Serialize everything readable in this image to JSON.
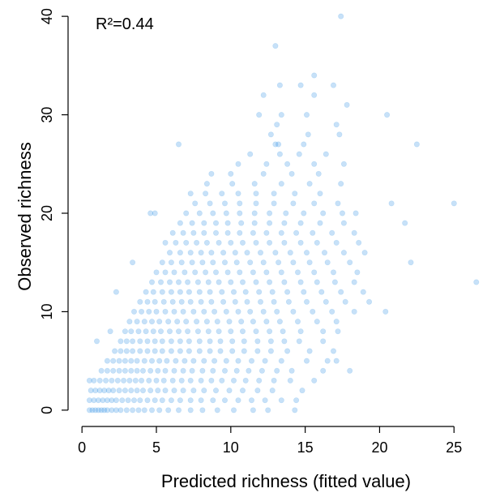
{
  "chart_data": {
    "type": "scatter",
    "xlabel": "Predicted richness (fitted value)",
    "ylabel": "Observed richness",
    "annotation": "R²=0.44",
    "xlim": [
      -0.5,
      27
    ],
    "ylim": [
      -1,
      41
    ],
    "x_ticks": [
      0,
      5,
      10,
      15,
      20,
      25
    ],
    "y_ticks": [
      0,
      10,
      20,
      30,
      40
    ],
    "grid": false,
    "point_color": "#1e88e5",
    "points": [
      [
        0.5,
        0
      ],
      [
        0.7,
        0
      ],
      [
        0.9,
        0
      ],
      [
        1.1,
        0
      ],
      [
        1.3,
        0
      ],
      [
        1.5,
        0
      ],
      [
        1.7,
        0
      ],
      [
        2.0,
        0
      ],
      [
        2.3,
        0
      ],
      [
        2.6,
        0
      ],
      [
        3.0,
        0
      ],
      [
        3.4,
        0
      ],
      [
        3.8,
        0
      ],
      [
        4.2,
        0
      ],
      [
        4.7,
        0
      ],
      [
        5.2,
        0
      ],
      [
        5.8,
        0
      ],
      [
        6.5,
        0
      ],
      [
        7.3,
        0
      ],
      [
        8.1,
        0
      ],
      [
        9.1,
        0
      ],
      [
        10.2,
        0
      ],
      [
        11.5,
        0
      ],
      [
        12.5,
        0
      ],
      [
        14.3,
        0
      ],
      [
        0.5,
        1
      ],
      [
        0.8,
        1
      ],
      [
        1.1,
        1
      ],
      [
        1.4,
        1
      ],
      [
        1.7,
        1
      ],
      [
        2.0,
        1
      ],
      [
        2.3,
        1
      ],
      [
        2.7,
        1
      ],
      [
        3.1,
        1
      ],
      [
        3.5,
        1
      ],
      [
        3.9,
        1
      ],
      [
        4.4,
        1
      ],
      [
        4.9,
        1
      ],
      [
        5.4,
        1
      ],
      [
        6.0,
        1
      ],
      [
        6.6,
        1
      ],
      [
        7.3,
        1
      ],
      [
        8.0,
        1
      ],
      [
        8.8,
        1
      ],
      [
        9.6,
        1
      ],
      [
        10.5,
        1
      ],
      [
        11.4,
        1
      ],
      [
        12.3,
        1
      ],
      [
        13.4,
        1
      ],
      [
        14.4,
        1
      ],
      [
        0.6,
        2
      ],
      [
        0.9,
        2
      ],
      [
        1.2,
        2
      ],
      [
        1.5,
        2
      ],
      [
        1.8,
        2
      ],
      [
        2.1,
        2
      ],
      [
        2.5,
        2
      ],
      [
        2.9,
        2
      ],
      [
        3.3,
        2
      ],
      [
        3.7,
        2
      ],
      [
        4.1,
        2
      ],
      [
        4.6,
        2
      ],
      [
        5.1,
        2
      ],
      [
        5.6,
        2
      ],
      [
        6.2,
        2
      ],
      [
        6.8,
        2
      ],
      [
        7.5,
        2
      ],
      [
        8.2,
        2
      ],
      [
        9.0,
        2
      ],
      [
        9.9,
        2
      ],
      [
        10.8,
        2
      ],
      [
        11.8,
        2
      ],
      [
        12.8,
        2
      ],
      [
        14.8,
        2
      ],
      [
        0.5,
        3
      ],
      [
        0.8,
        3
      ],
      [
        1.2,
        3
      ],
      [
        1.6,
        3
      ],
      [
        2.0,
        3
      ],
      [
        2.4,
        3
      ],
      [
        2.8,
        3
      ],
      [
        3.2,
        3
      ],
      [
        3.6,
        3
      ],
      [
        4.0,
        3
      ],
      [
        4.5,
        3
      ],
      [
        5.0,
        3
      ],
      [
        5.5,
        3
      ],
      [
        6.1,
        3
      ],
      [
        6.7,
        3
      ],
      [
        7.3,
        3
      ],
      [
        8.0,
        3
      ],
      [
        8.7,
        3
      ],
      [
        9.4,
        3
      ],
      [
        10.2,
        3
      ],
      [
        11.0,
        3
      ],
      [
        11.9,
        3
      ],
      [
        12.9,
        3
      ],
      [
        14.0,
        3
      ],
      [
        15.6,
        3
      ],
      [
        1.3,
        4
      ],
      [
        1.7,
        4
      ],
      [
        2.1,
        4
      ],
      [
        2.5,
        4
      ],
      [
        2.9,
        4
      ],
      [
        3.3,
        4
      ],
      [
        3.7,
        4
      ],
      [
        4.1,
        4
      ],
      [
        4.6,
        4
      ],
      [
        5.1,
        4
      ],
      [
        5.6,
        4
      ],
      [
        6.2,
        4
      ],
      [
        6.8,
        4
      ],
      [
        7.4,
        4
      ],
      [
        8.1,
        4
      ],
      [
        8.8,
        4
      ],
      [
        9.6,
        4
      ],
      [
        10.4,
        4
      ],
      [
        11.2,
        4
      ],
      [
        12.1,
        4
      ],
      [
        13.1,
        4
      ],
      [
        14.1,
        4
      ],
      [
        16.2,
        4
      ],
      [
        18.0,
        4
      ],
      [
        1.7,
        5
      ],
      [
        2.1,
        5
      ],
      [
        2.5,
        5
      ],
      [
        2.9,
        5
      ],
      [
        3.3,
        5
      ],
      [
        3.7,
        5
      ],
      [
        4.2,
        5
      ],
      [
        4.7,
        5
      ],
      [
        5.2,
        5
      ],
      [
        5.7,
        5
      ],
      [
        6.3,
        5
      ],
      [
        6.9,
        5
      ],
      [
        7.5,
        5
      ],
      [
        8.2,
        5
      ],
      [
        8.9,
        5
      ],
      [
        9.7,
        5
      ],
      [
        10.5,
        5
      ],
      [
        11.4,
        5
      ],
      [
        12.3,
        5
      ],
      [
        13.4,
        5
      ],
      [
        15.1,
        5
      ],
      [
        16.5,
        5
      ],
      [
        17.1,
        5
      ],
      [
        2.2,
        6
      ],
      [
        2.6,
        6
      ],
      [
        3.0,
        6
      ],
      [
        3.4,
        6
      ],
      [
        3.9,
        6
      ],
      [
        4.4,
        6
      ],
      [
        4.9,
        6
      ],
      [
        5.4,
        6
      ],
      [
        6.0,
        6
      ],
      [
        6.6,
        6
      ],
      [
        7.2,
        6
      ],
      [
        7.9,
        6
      ],
      [
        8.6,
        6
      ],
      [
        9.3,
        6
      ],
      [
        10.1,
        6
      ],
      [
        10.9,
        6
      ],
      [
        11.8,
        6
      ],
      [
        12.7,
        6
      ],
      [
        13.8,
        6
      ],
      [
        15.3,
        6
      ],
      [
        16.9,
        6
      ],
      [
        2.6,
        7
      ],
      [
        3.0,
        7
      ],
      [
        3.4,
        7
      ],
      [
        3.9,
        7
      ],
      [
        4.4,
        7
      ],
      [
        4.9,
        7
      ],
      [
        5.4,
        7
      ],
      [
        6.0,
        7
      ],
      [
        6.6,
        7
      ],
      [
        7.2,
        7
      ],
      [
        7.9,
        7
      ],
      [
        8.6,
        7
      ],
      [
        9.3,
        7
      ],
      [
        10.1,
        7
      ],
      [
        10.9,
        7
      ],
      [
        11.8,
        7
      ],
      [
        12.7,
        7
      ],
      [
        13.6,
        7
      ],
      [
        14.6,
        7
      ],
      [
        16.2,
        7
      ],
      [
        1.0,
        7
      ],
      [
        2.9,
        8
      ],
      [
        3.3,
        8
      ],
      [
        3.8,
        8
      ],
      [
        4.3,
        8
      ],
      [
        4.8,
        8
      ],
      [
        5.3,
        8
      ],
      [
        5.9,
        8
      ],
      [
        6.5,
        8
      ],
      [
        7.1,
        8
      ],
      [
        7.8,
        8
      ],
      [
        8.5,
        8
      ],
      [
        9.2,
        8
      ],
      [
        10.0,
        8
      ],
      [
        10.8,
        8
      ],
      [
        11.7,
        8
      ],
      [
        12.6,
        8
      ],
      [
        13.5,
        8
      ],
      [
        14.7,
        8
      ],
      [
        16.2,
        8
      ],
      [
        17.2,
        8
      ],
      [
        1.9,
        8
      ],
      [
        3.2,
        9
      ],
      [
        3.7,
        9
      ],
      [
        4.2,
        9
      ],
      [
        4.7,
        9
      ],
      [
        5.2,
        9
      ],
      [
        5.8,
        9
      ],
      [
        6.4,
        9
      ],
      [
        7.0,
        9
      ],
      [
        7.7,
        9
      ],
      [
        8.4,
        9
      ],
      [
        9.1,
        9
      ],
      [
        9.9,
        9
      ],
      [
        10.7,
        9
      ],
      [
        11.5,
        9
      ],
      [
        12.4,
        9
      ],
      [
        13.3,
        9
      ],
      [
        14.5,
        9
      ],
      [
        15.8,
        9
      ],
      [
        17.1,
        9
      ],
      [
        3.5,
        10
      ],
      [
        4.0,
        10
      ],
      [
        4.5,
        10
      ],
      [
        5.0,
        10
      ],
      [
        5.6,
        10
      ],
      [
        6.2,
        10
      ],
      [
        6.8,
        10
      ],
      [
        7.5,
        10
      ],
      [
        8.2,
        10
      ],
      [
        8.9,
        10
      ],
      [
        9.7,
        10
      ],
      [
        10.5,
        10
      ],
      [
        11.3,
        10
      ],
      [
        12.2,
        10
      ],
      [
        13.1,
        10
      ],
      [
        14.2,
        10
      ],
      [
        15.5,
        10
      ],
      [
        16.8,
        10
      ],
      [
        18.3,
        10
      ],
      [
        20.4,
        10
      ],
      [
        3.9,
        11
      ],
      [
        4.4,
        11
      ],
      [
        4.9,
        11
      ],
      [
        5.5,
        11
      ],
      [
        6.1,
        11
      ],
      [
        6.7,
        11
      ],
      [
        7.3,
        11
      ],
      [
        8.0,
        11
      ],
      [
        8.7,
        11
      ],
      [
        9.5,
        11
      ],
      [
        10.3,
        11
      ],
      [
        11.1,
        11
      ],
      [
        12.0,
        11
      ],
      [
        12.9,
        11
      ],
      [
        13.9,
        11
      ],
      [
        15.1,
        11
      ],
      [
        16.4,
        11
      ],
      [
        17.7,
        11
      ],
      [
        19.3,
        11
      ],
      [
        2.3,
        12
      ],
      [
        4.3,
        12
      ],
      [
        4.8,
        12
      ],
      [
        5.4,
        12
      ],
      [
        6.0,
        12
      ],
      [
        6.6,
        12
      ],
      [
        7.2,
        12
      ],
      [
        7.9,
        12
      ],
      [
        8.6,
        12
      ],
      [
        9.4,
        12
      ],
      [
        10.2,
        12
      ],
      [
        11.0,
        12
      ],
      [
        11.9,
        12
      ],
      [
        12.8,
        12
      ],
      [
        13.8,
        12
      ],
      [
        14.9,
        12
      ],
      [
        16.1,
        12
      ],
      [
        17.4,
        12
      ],
      [
        18.9,
        12
      ],
      [
        4.7,
        13
      ],
      [
        5.3,
        13
      ],
      [
        5.9,
        13
      ],
      [
        6.5,
        13
      ],
      [
        7.1,
        13
      ],
      [
        7.8,
        13
      ],
      [
        8.5,
        13
      ],
      [
        9.2,
        13
      ],
      [
        10.0,
        13
      ],
      [
        10.8,
        13
      ],
      [
        11.7,
        13
      ],
      [
        12.6,
        13
      ],
      [
        13.6,
        13
      ],
      [
        14.7,
        13
      ],
      [
        15.8,
        13
      ],
      [
        17.0,
        13
      ],
      [
        18.3,
        13
      ],
      [
        26.5,
        13
      ],
      [
        5.0,
        14
      ],
      [
        5.6,
        14
      ],
      [
        6.2,
        14
      ],
      [
        6.9,
        14
      ],
      [
        7.6,
        14
      ],
      [
        8.3,
        14
      ],
      [
        9.0,
        14
      ],
      [
        9.8,
        14
      ],
      [
        10.6,
        14
      ],
      [
        11.5,
        14
      ],
      [
        12.4,
        14
      ],
      [
        13.4,
        14
      ],
      [
        14.5,
        14
      ],
      [
        15.6,
        14
      ],
      [
        16.9,
        14
      ],
      [
        18.5,
        14
      ],
      [
        3.4,
        15
      ],
      [
        5.4,
        15
      ],
      [
        6.0,
        15
      ],
      [
        6.7,
        15
      ],
      [
        7.4,
        15
      ],
      [
        8.1,
        15
      ],
      [
        8.8,
        15
      ],
      [
        9.6,
        15
      ],
      [
        10.4,
        15
      ],
      [
        11.3,
        15
      ],
      [
        12.2,
        15
      ],
      [
        13.2,
        15
      ],
      [
        14.2,
        15
      ],
      [
        15.3,
        15
      ],
      [
        16.5,
        15
      ],
      [
        18.0,
        15
      ],
      [
        22.1,
        15
      ],
      [
        5.9,
        16
      ],
      [
        6.6,
        16
      ],
      [
        7.3,
        16
      ],
      [
        8.0,
        16
      ],
      [
        8.7,
        16
      ],
      [
        9.5,
        16
      ],
      [
        10.3,
        16
      ],
      [
        11.1,
        16
      ],
      [
        12.0,
        16
      ],
      [
        13.0,
        16
      ],
      [
        14.0,
        16
      ],
      [
        15.1,
        16
      ],
      [
        16.3,
        16
      ],
      [
        17.6,
        16
      ],
      [
        19.0,
        16
      ],
      [
        5.6,
        17
      ],
      [
        6.3,
        17
      ],
      [
        7.0,
        17
      ],
      [
        7.7,
        17
      ],
      [
        8.4,
        17
      ],
      [
        9.2,
        17
      ],
      [
        10.0,
        17
      ],
      [
        10.8,
        17
      ],
      [
        11.7,
        17
      ],
      [
        12.6,
        17
      ],
      [
        13.6,
        17
      ],
      [
        14.7,
        17
      ],
      [
        15.8,
        17
      ],
      [
        17.1,
        17
      ],
      [
        18.6,
        17
      ],
      [
        6.1,
        18
      ],
      [
        6.8,
        18
      ],
      [
        7.5,
        18
      ],
      [
        8.2,
        18
      ],
      [
        9.0,
        18
      ],
      [
        9.8,
        18
      ],
      [
        10.6,
        18
      ],
      [
        11.5,
        18
      ],
      [
        12.4,
        18
      ],
      [
        13.4,
        18
      ],
      [
        14.4,
        18
      ],
      [
        15.5,
        18
      ],
      [
        16.8,
        18
      ],
      [
        18.3,
        18
      ],
      [
        6.6,
        19
      ],
      [
        7.4,
        19
      ],
      [
        8.2,
        19
      ],
      [
        9.0,
        19
      ],
      [
        9.8,
        19
      ],
      [
        10.7,
        19
      ],
      [
        11.6,
        19
      ],
      [
        12.6,
        19
      ],
      [
        13.6,
        19
      ],
      [
        14.7,
        19
      ],
      [
        16.0,
        19
      ],
      [
        17.6,
        19
      ],
      [
        21.7,
        19
      ],
      [
        4.6,
        20
      ],
      [
        4.9,
        20
      ],
      [
        7.0,
        20
      ],
      [
        7.9,
        20
      ],
      [
        8.8,
        20
      ],
      [
        9.7,
        20
      ],
      [
        10.6,
        20
      ],
      [
        11.6,
        20
      ],
      [
        12.6,
        20
      ],
      [
        13.7,
        20
      ],
      [
        14.9,
        20
      ],
      [
        16.2,
        20
      ],
      [
        17.5,
        20
      ],
      [
        18.4,
        20
      ],
      [
        7.6,
        21
      ],
      [
        8.6,
        21
      ],
      [
        9.6,
        21
      ],
      [
        10.6,
        21
      ],
      [
        11.7,
        21
      ],
      [
        12.9,
        21
      ],
      [
        14.2,
        21
      ],
      [
        15.6,
        21
      ],
      [
        17.2,
        21
      ],
      [
        20.8,
        21
      ],
      [
        25.0,
        21
      ],
      [
        8.3,
        22
      ],
      [
        9.4,
        22
      ],
      [
        10.5,
        22
      ],
      [
        11.7,
        22
      ],
      [
        12.9,
        22
      ],
      [
        14.3,
        22
      ],
      [
        16.0,
        22
      ],
      [
        7.3,
        22
      ],
      [
        8.4,
        23
      ],
      [
        10.1,
        23
      ],
      [
        11.6,
        23
      ],
      [
        13.4,
        23
      ],
      [
        15.3,
        23
      ],
      [
        17.4,
        23
      ],
      [
        8.7,
        24
      ],
      [
        10.0,
        24
      ],
      [
        12.2,
        24
      ],
      [
        14.1,
        24
      ],
      [
        15.9,
        24
      ],
      [
        10.5,
        25
      ],
      [
        12.4,
        25
      ],
      [
        13.8,
        25
      ],
      [
        15.6,
        25
      ],
      [
        17.6,
        25
      ],
      [
        11.3,
        26
      ],
      [
        13.3,
        26
      ],
      [
        14.6,
        26
      ],
      [
        16.4,
        26
      ],
      [
        6.5,
        27
      ],
      [
        13.0,
        27
      ],
      [
        13.2,
        27
      ],
      [
        14.9,
        27
      ],
      [
        22.5,
        27
      ],
      [
        12.7,
        28
      ],
      [
        15.2,
        28
      ],
      [
        17.3,
        28
      ],
      [
        13.1,
        29
      ],
      [
        17.1,
        29
      ],
      [
        11.9,
        30
      ],
      [
        13.4,
        30
      ],
      [
        15.1,
        30
      ],
      [
        20.5,
        30
      ],
      [
        17.8,
        31
      ],
      [
        12.2,
        32
      ],
      [
        15.6,
        32
      ],
      [
        13.3,
        33
      ],
      [
        14.7,
        33
      ],
      [
        16.9,
        33
      ],
      [
        15.6,
        34
      ],
      [
        13.0,
        37
      ],
      [
        17.4,
        40
      ]
    ]
  }
}
